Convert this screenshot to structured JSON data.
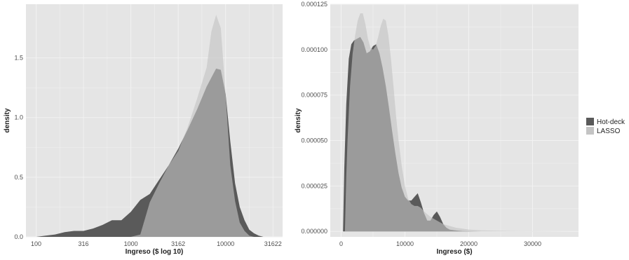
{
  "colors": {
    "panel_bg": "#e5e5e5",
    "grid": "#f2f2f2",
    "hot_deck": "#5a5a5a",
    "lasso": "#c4c4c4",
    "overlap": "#a3a3a3"
  },
  "legend": {
    "position": "right",
    "items": [
      {
        "label": "Hot-deck",
        "color": "#5a5a5a"
      },
      {
        "label": "LASSO",
        "color": "#c4c4c4"
      }
    ]
  },
  "chart_data": [
    {
      "type": "area",
      "xlabel": "Ingreso ($ log 10)",
      "ylabel": "density",
      "x_scale": "log10",
      "xlim": [
        78,
        40000
      ],
      "ylim": [
        0,
        1.95
      ],
      "x_tick_labels": [
        "100",
        "316",
        "1000",
        "3162",
        "10000",
        "31622"
      ],
      "x_tick_values": [
        100,
        316,
        1000,
        3162,
        10000,
        31622
      ],
      "y_tick_labels": [
        "0.0",
        "0.5",
        "1.0",
        "1.5"
      ],
      "y_tick_values": [
        0,
        0.5,
        1.0,
        1.5
      ],
      "grid": true,
      "series": [
        {
          "name": "Hot-deck",
          "x": [
            100,
            126,
            158,
            200,
            251,
            316,
            398,
            501,
            631,
            794,
            1000,
            1259,
            1585,
            1995,
            2512,
            3162,
            3981,
            5012,
            6310,
            7943,
            8913,
            10000,
            11220,
            12589,
            14125,
            15849,
            17783,
            19953,
            22387,
            25119
          ],
          "y": [
            0.0,
            0.01,
            0.02,
            0.04,
            0.05,
            0.05,
            0.07,
            0.1,
            0.14,
            0.14,
            0.21,
            0.31,
            0.36,
            0.48,
            0.6,
            0.74,
            0.9,
            1.07,
            1.26,
            1.41,
            1.4,
            1.2,
            0.8,
            0.45,
            0.25,
            0.14,
            0.06,
            0.03,
            0.01,
            0.0
          ]
        },
        {
          "name": "LASSO",
          "x": [
            1000,
            1259,
            1585,
            1995,
            2512,
            3162,
            3981,
            5012,
            6310,
            7079,
            7943,
            8913,
            10000,
            11220,
            12589,
            14125,
            15849,
            17783,
            19953
          ],
          "y": [
            0.0,
            0.02,
            0.29,
            0.45,
            0.6,
            0.72,
            0.92,
            1.16,
            1.42,
            1.72,
            1.86,
            1.75,
            1.2,
            0.6,
            0.3,
            0.12,
            0.05,
            0.01,
            0.0
          ]
        }
      ]
    },
    {
      "type": "area",
      "xlabel": "Ingreso ($)",
      "ylabel": "density",
      "xlim": [
        -1700,
        37200
      ],
      "ylim": [
        -3e-06,
        0.000125
      ],
      "x_tick_labels": [
        "0",
        "10000",
        "20000",
        "30000"
      ],
      "x_tick_values": [
        0,
        10000,
        20000,
        30000
      ],
      "y_tick_labels": [
        "0.000000",
        "0.000025",
        "0.000050",
        "0.000075",
        "0.000100",
        "0.000125"
      ],
      "y_tick_values": [
        0,
        2.5e-05,
        5e-05,
        7.5e-05,
        0.0001,
        0.000125
      ],
      "grid": true,
      "series": [
        {
          "name": "Hot-deck",
          "x": [
            300,
            500,
            800,
            1200,
            1600,
            2000,
            2500,
            3000,
            3500,
            4000,
            4500,
            5000,
            5500,
            6000,
            6500,
            7000,
            7500,
            8000,
            8500,
            9000,
            9500,
            10000,
            10500,
            11000,
            11500,
            12000,
            12500,
            13000,
            13500,
            14000,
            14500,
            15000,
            15500,
            16000,
            16500,
            17000,
            18000,
            19000,
            20000,
            22000,
            25000,
            28000,
            32000,
            36000
          ],
          "y": [
            0.0,
            3.5e-05,
            7e-05,
            9.5e-05,
            0.000103,
            0.000105,
            0.000106,
            0.000107,
            0.000104,
            9.8e-05,
            9.9e-05,
            0.000102,
            0.000103,
            9.8e-05,
            9e-05,
            8e-05,
            6.8e-05,
            5.5e-05,
            4.3e-05,
            3.2e-05,
            2.4e-05,
            1.9e-05,
            1.7e-05,
            1.7e-05,
            1.9e-05,
            2.1e-05,
            1.6e-05,
            1e-05,
            6e-06,
            6e-06,
            9e-06,
            1.1e-05,
            8e-06,
            4e-06,
            2e-06,
            1e-06,
            5e-07,
            2e-07,
            1e-07,
            0.0,
            0.0,
            0.0,
            0.0,
            0.0
          ]
        },
        {
          "name": "LASSO",
          "x": [
            600,
            800,
            1000,
            1400,
            1800,
            2200,
            2600,
            3000,
            3400,
            3800,
            4200,
            4600,
            5000,
            5400,
            5800,
            6200,
            6600,
            7000,
            7400,
            7800,
            8200,
            8600,
            9000,
            9500,
            10000,
            10500,
            11000,
            11500,
            12000,
            12500,
            13000,
            14000,
            15000,
            16000,
            17000,
            18000,
            19000,
            20000,
            22000,
            25000,
            28000,
            32000,
            36000
          ],
          "y": [
            0.0,
            3e-05,
            5e-05,
            8e-05,
            9.8e-05,
            0.000108,
            0.000116,
            0.00012,
            0.00012,
            0.000114,
            0.000106,
            0.000101,
            0.0001,
            0.000102,
            0.000107,
            0.000113,
            0.000117,
            0.000116,
            0.000108,
            9.5e-05,
            8e-05,
            6.4e-05,
            5e-05,
            3.6e-05,
            2.5e-05,
            1.8e-05,
            1.5e-05,
            1.4e-05,
            1.4e-05,
            1.3e-05,
            1.1e-05,
            8e-06,
            6e-06,
            4e-06,
            3e-06,
            2e-06,
            1.5e-06,
            1e-06,
            6e-07,
            3e-07,
            2e-07,
            1e-07,
            0.0
          ]
        }
      ]
    }
  ]
}
